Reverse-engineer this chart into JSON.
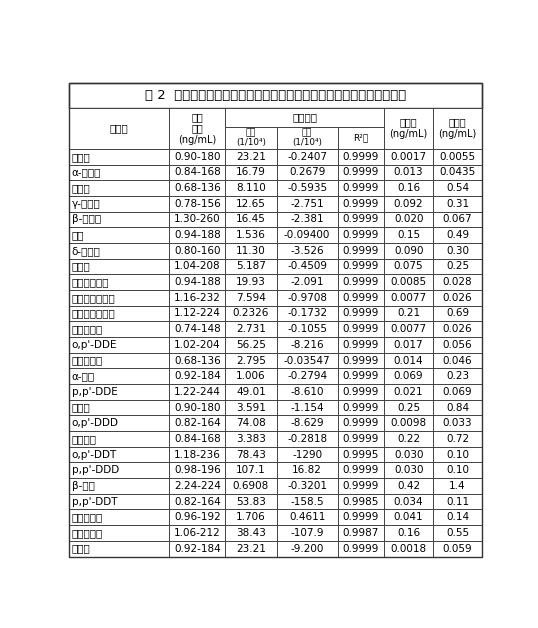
{
  "title": "表 2  本发明方法中目标分析物的线性范围、工作曲线、定量限和检测限",
  "rows": [
    [
      "六氯苯",
      "0.90-180",
      "23.21",
      "-0.2407",
      "0.9999",
      "0.0017",
      "0.0055"
    ],
    [
      "α-六六六",
      "0.84-168",
      "16.79",
      "0.2679",
      "0.9999",
      "0.013",
      "0.0435"
    ],
    [
      "氯硝胺",
      "0.68-136",
      "8.110",
      "-0.5935",
      "0.9999",
      "0.16",
      "0.54"
    ],
    [
      "γ-六六六",
      "0.78-156",
      "12.65",
      "-2.751",
      "0.9999",
      "0.092",
      "0.31"
    ],
    [
      "β-六六六",
      "1.30-260",
      "16.45",
      "-2.381",
      "0.9999",
      "0.020",
      "0.067"
    ],
    [
      "七氯",
      "0.94-188",
      "1.536",
      "-0.09400",
      "0.9999",
      "0.15",
      "0.49"
    ],
    [
      "δ-六六六",
      "0.80-160",
      "11.30",
      "-3.526",
      "0.9999",
      "0.090",
      "0.30"
    ],
    [
      "艾氏剂",
      "1.04-208",
      "5.187",
      "-0.4509",
      "0.9999",
      "0.075",
      "0.25"
    ],
    [
      "氯酞酸二甲酯",
      "0.94-188",
      "19.93",
      "-2.091",
      "0.9999",
      "0.0085",
      "0.028"
    ],
    [
      "环氧七氯（顺）",
      "1.16-232",
      "7.594",
      "-0.9708",
      "0.9999",
      "0.0077",
      "0.026"
    ],
    [
      "环氧七氯（反）",
      "1.12-224",
      "0.2326",
      "-0.1732",
      "0.9999",
      "0.21",
      "0.69"
    ],
    [
      "氯丹（反）",
      "0.74-148",
      "2.731",
      "-0.1055",
      "0.9999",
      "0.0077",
      "0.026"
    ],
    [
      "o,p'-DDE",
      "1.02-204",
      "56.25",
      "-8.216",
      "0.9999",
      "0.017",
      "0.056"
    ],
    [
      "氯丹（顺）",
      "0.68-136",
      "2.795",
      "-0.03547",
      "0.9999",
      "0.014",
      "0.046"
    ],
    [
      "α-硫丹",
      "0.92-184",
      "1.006",
      "-0.2794",
      "0.9999",
      "0.069",
      "0.23"
    ],
    [
      "p,p'-DDE",
      "1.22-244",
      "49.01",
      "-8.610",
      "0.9999",
      "0.021",
      "0.069"
    ],
    [
      "狄氏剂",
      "0.90-180",
      "3.591",
      "-1.154",
      "0.9999",
      "0.25",
      "0.84"
    ],
    [
      "o,p'-DDD",
      "0.82-164",
      "74.08",
      "-8.629",
      "0.9999",
      "0.0098",
      "0.033"
    ],
    [
      "异狄氏剂",
      "0.84-168",
      "3.383",
      "-0.2818",
      "0.9999",
      "0.22",
      "0.72"
    ],
    [
      "o,p'-DDT",
      "1.18-236",
      "78.43",
      "-1290",
      "0.9995",
      "0.030",
      "0.10"
    ],
    [
      "p,p'-DDD",
      "0.98-196",
      "107.1",
      "16.82",
      "0.9999",
      "0.030",
      "0.10"
    ],
    [
      "β-硫丹",
      "2.24-224",
      "0.6908",
      "-0.3201",
      "0.9999",
      "0.42",
      "1.4"
    ],
    [
      "p,p'-DDT",
      "0.82-164",
      "53.83",
      "-158.5",
      "0.9985",
      "0.034",
      "0.11"
    ],
    [
      "硫丹硫酸酯",
      "0.96-192",
      "1.706",
      "0.4611",
      "0.9999",
      "0.041",
      "0.14"
    ],
    [
      "甲氧滴滴涕",
      "1.06-212",
      "38.43",
      "-107.9",
      "0.9987",
      "0.16",
      "0.55"
    ],
    [
      "灭蚁灵",
      "0.92-184",
      "23.21",
      "-9.200",
      "0.9999",
      "0.0018",
      "0.059"
    ]
  ],
  "bg_color": "#ffffff",
  "border_color": "#333333",
  "font_size": 7.5,
  "title_font_size": 9.5,
  "header_font_size": 7.5
}
